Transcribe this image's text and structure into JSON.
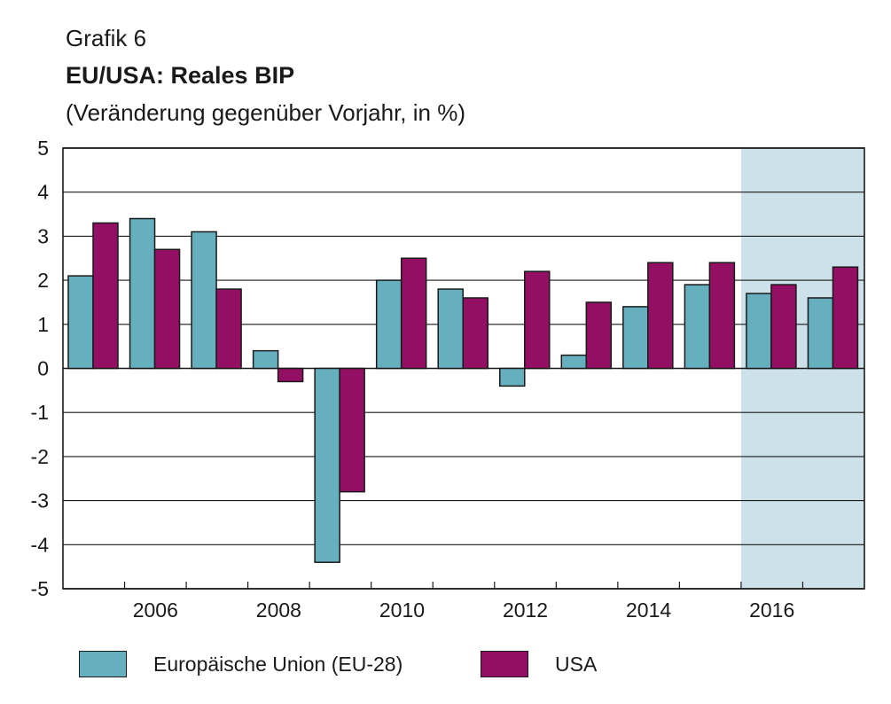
{
  "header": {
    "label": "Grafik 6",
    "title": "EU/USA: Reales BIP",
    "subtitle": "(Veränderung gegenüber Vorjahr, in %)"
  },
  "colors": {
    "eu": "#66AFBF",
    "usa": "#930F63",
    "forecast_band": "#CCE1EA",
    "gridline": "#1a1a1a"
  },
  "legend": {
    "eu_label": "Europäische Union (EU-28)",
    "usa_label": "USA"
  },
  "chart_data": {
    "type": "bar",
    "categories": [
      "2005",
      "2006",
      "2007",
      "2008",
      "2009",
      "2010",
      "2011",
      "2012",
      "2013",
      "2014",
      "2015",
      "2016",
      "2017"
    ],
    "x_tick_labels": [
      "2006",
      "2008",
      "2010",
      "2012",
      "2014",
      "2016"
    ],
    "series": [
      {
        "name": "Europäische Union (EU-28)",
        "values": [
          2.1,
          3.4,
          3.1,
          0.4,
          -4.4,
          2.0,
          1.8,
          -0.4,
          0.3,
          1.4,
          1.9,
          1.7,
          1.6
        ]
      },
      {
        "name": "USA",
        "values": [
          3.3,
          2.7,
          1.8,
          -0.3,
          -2.8,
          2.5,
          1.6,
          2.2,
          1.5,
          2.4,
          2.4,
          1.9,
          2.3
        ]
      }
    ],
    "ylim": [
      -5,
      5
    ],
    "yticks": [
      5,
      4,
      3,
      2,
      1,
      0,
      -1,
      -2,
      -3,
      -4,
      -5
    ],
    "forecast_shaded_from": "2016",
    "grid": true,
    "legend_position": "bottom"
  }
}
